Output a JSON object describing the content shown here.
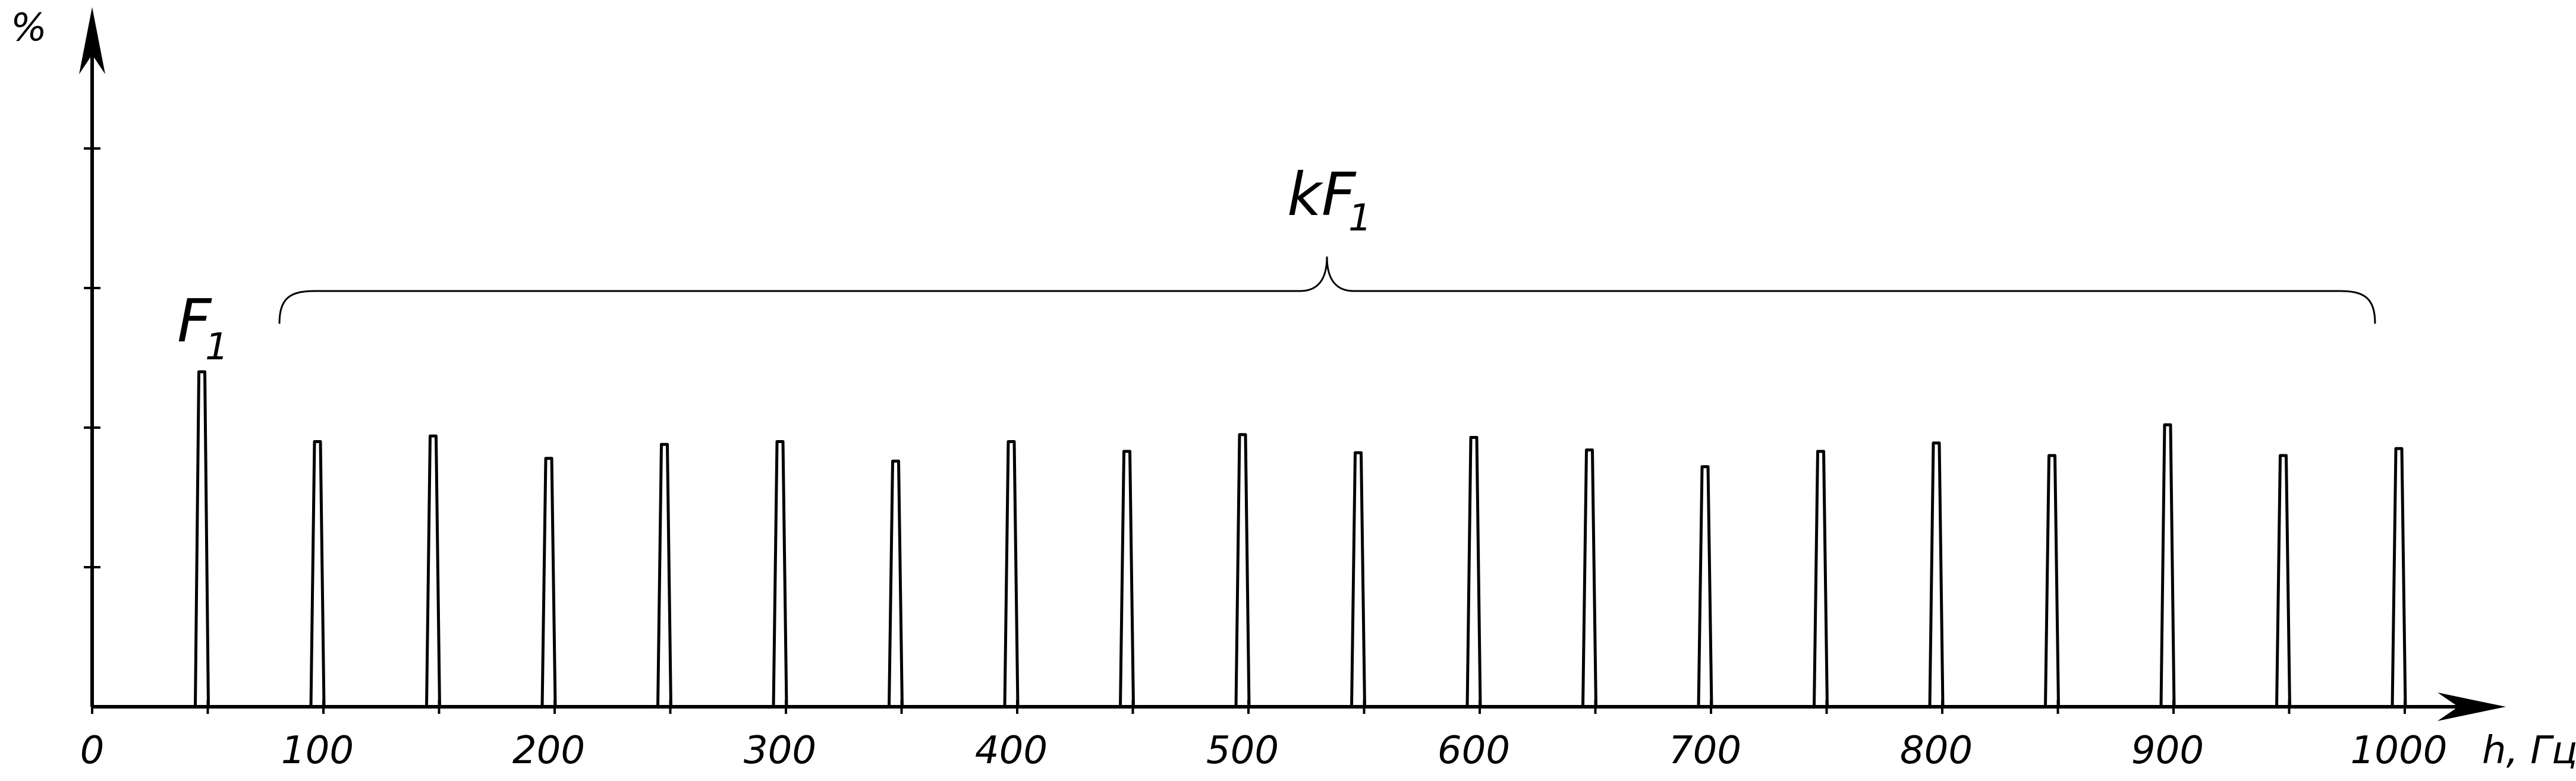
{
  "chart_data": {
    "type": "bar",
    "title": "",
    "xlabel": "h, Гц",
    "ylabel": "%",
    "xlim": [
      0,
      1000
    ],
    "ylim": [
      0,
      5
    ],
    "x_ticks": [
      "0",
      "100",
      "200",
      "300",
      "400",
      "500",
      "600",
      "700",
      "800",
      "900",
      "1000"
    ],
    "x": [
      50,
      100,
      150,
      200,
      250,
      300,
      350,
      400,
      450,
      500,
      550,
      600,
      650,
      700,
      750,
      800,
      850,
      900,
      950,
      1000
    ],
    "values": [
      2.4,
      1.9,
      1.94,
      1.78,
      1.88,
      1.9,
      1.76,
      1.9,
      1.83,
      1.95,
      1.82,
      1.93,
      1.84,
      1.72,
      1.83,
      1.89,
      1.8,
      2.02,
      1.8,
      1.85
    ],
    "annotations": {
      "fundamental": "F",
      "fundamental_sub": "1",
      "harmonics": "kF",
      "harmonics_sub": "1"
    },
    "grid": false,
    "legend": "none"
  }
}
